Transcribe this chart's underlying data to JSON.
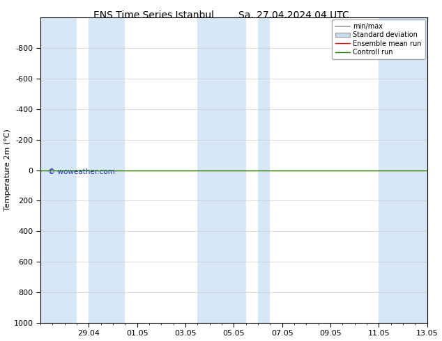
{
  "title_left": "ENS Time Series Istanbul",
  "title_right": "Sa. 27.04.2024 04 UTC",
  "ylabel": "Temperature 2m (°C)",
  "watermark": "© woweather.com",
  "ylim_top": -1000,
  "ylim_bottom": 1000,
  "yticks": [
    -800,
    -600,
    -400,
    -200,
    0,
    200,
    400,
    600,
    800,
    1000
  ],
  "xtick_labels": [
    "29.04",
    "01.05",
    "03.05",
    "05.05",
    "07.05",
    "09.05",
    "11.05",
    "13.05"
  ],
  "xtick_days": [
    2,
    4,
    6,
    8,
    10,
    12,
    14,
    16
  ],
  "x_min": 0,
  "x_max": 16,
  "shaded_regions": [
    [
      0,
      1.5
    ],
    [
      2.0,
      3.5
    ],
    [
      6.5,
      8.5
    ],
    [
      9.0,
      9.5
    ],
    [
      14.0,
      16.0
    ]
  ],
  "band_color": "#d6e8f7",
  "background_color": "#ffffff",
  "ensemble_mean_color": "#ff0000",
  "control_run_color": "#228800",
  "minmax_color": "#999999",
  "stddev_color": "#c8ddf0",
  "legend_entries": [
    "min/max",
    "Standard deviation",
    "Ensemble mean run",
    "Controll run"
  ],
  "title_fontsize": 10,
  "axis_label_fontsize": 8,
  "tick_fontsize": 8,
  "legend_fontsize": 7,
  "watermark_color": "#0000cc"
}
